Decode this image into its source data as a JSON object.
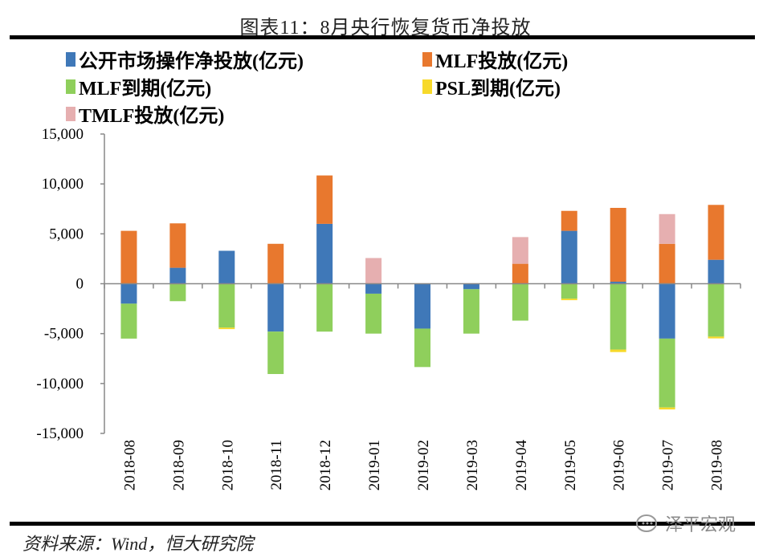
{
  "title": "图表11：8月央行恢复货币净投放",
  "source": "资料来源：Wind，恒大研究院",
  "watermark": "泽平宏观",
  "chart_data": {
    "type": "bar",
    "stacked": true,
    "title": "图表11：8月央行恢复货币净投放",
    "xlabel": "",
    "ylabel": "",
    "ylim": [
      -15000,
      15000
    ],
    "yticks": [
      15000,
      10000,
      5000,
      0,
      -5000,
      -10000,
      -15000
    ],
    "ytick_labels": [
      "15,000",
      "10,000",
      "5,000",
      "0",
      "-5,000",
      "-10,000",
      "-15,000"
    ],
    "grid": false,
    "legend_position": "top",
    "categories": [
      "2018-08",
      "2018-09",
      "2018-10",
      "2018-11",
      "2018-12",
      "2019-01",
      "2019-02",
      "2019-03",
      "2019-04",
      "2019-05",
      "2019-06",
      "2019-07",
      "2019-08"
    ],
    "series": [
      {
        "name": "公开市场操作净投放(亿元)",
        "color": "#3f78b8",
        "values": [
          -2000,
          1600,
          3300,
          -4800,
          6000,
          -1000,
          -4500,
          -550,
          0,
          5300,
          200,
          -5500,
          2400
        ]
      },
      {
        "name": "MLF投放(亿元)",
        "color": "#e8782e",
        "values": [
          5300,
          4450,
          0,
          4000,
          4850,
          0,
          0,
          0,
          2000,
          2000,
          7400,
          4000,
          5500
        ]
      },
      {
        "name": "MLF到期(亿元)",
        "color": "#8fcf5c",
        "values": [
          -3500,
          -1750,
          -4400,
          -4250,
          -4800,
          -4000,
          -3850,
          -4450,
          -3700,
          -1500,
          -6600,
          -6900,
          -5300
        ]
      },
      {
        "name": "PSL到期(亿元)",
        "color": "#f7d92a",
        "values": [
          0,
          0,
          -150,
          0,
          0,
          0,
          0,
          0,
          0,
          -150,
          -250,
          -200,
          -180
        ]
      },
      {
        "name": "TMLF投放(亿元)",
        "color": "#e6afb0",
        "values": [
          0,
          0,
          0,
          0,
          0,
          2575,
          0,
          0,
          2674,
          0,
          0,
          2977,
          0
        ]
      }
    ]
  }
}
